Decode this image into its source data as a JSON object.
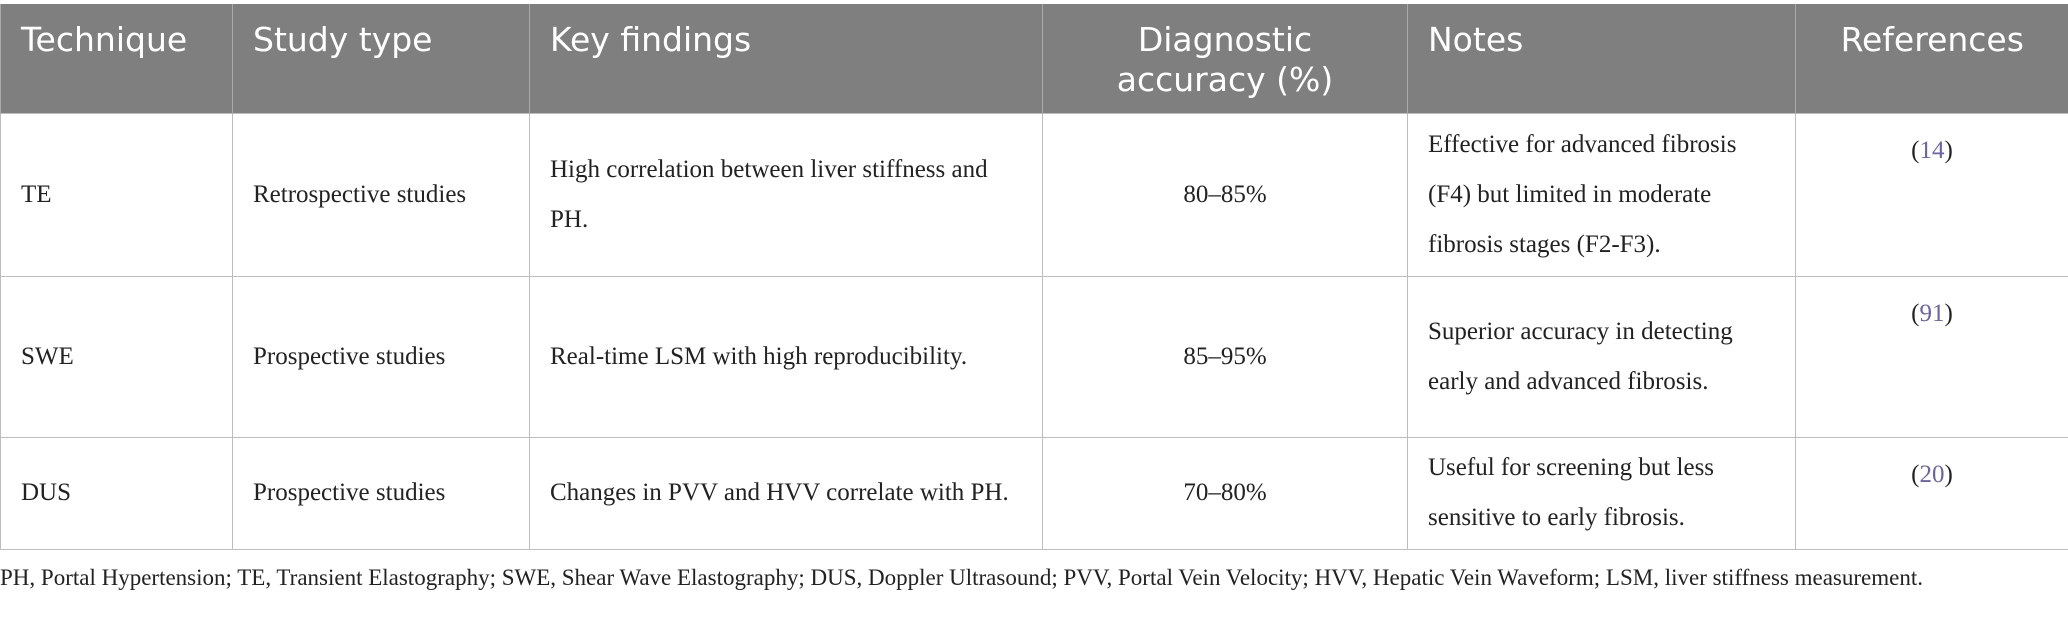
{
  "table": {
    "header": [
      "Technique",
      "Study type",
      "Key findings",
      "Diagnostic accuracy (%)",
      "Notes",
      "References"
    ],
    "rows": [
      [
        "TE",
        "Retrospective studies",
        "High correlation between liver stiffness and PH.",
        "80–85%",
        "Effective for advanced fibrosis (F4) but limited in moderate fibrosis stages (F2-F3).",
        [
          "(",
          "14",
          ")"
        ]
      ],
      [
        "SWE",
        "Prospective studies",
        "Real-time LSM with high reproducibility.",
        "85–95%",
        "Superior accuracy in detecting early and advanced fibrosis.",
        [
          "(",
          "91",
          ")"
        ]
      ],
      [
        "DUS",
        "Prospective studies",
        "Changes in PVV and HVV correlate with PH.",
        "70–80%",
        "Useful for screening but less sensitive to early fibrosis.",
        [
          "(",
          "20",
          ")"
        ]
      ]
    ]
  },
  "footnote": "PH, Portal Hypertension; TE, Transient Elastography; SWE, Shear Wave Elastography; DUS, Doppler Ultrasound; PVV, Portal Vein Velocity; HVV, Hepatic Vein Waveform; LSM, liver stiffness measurement."
}
